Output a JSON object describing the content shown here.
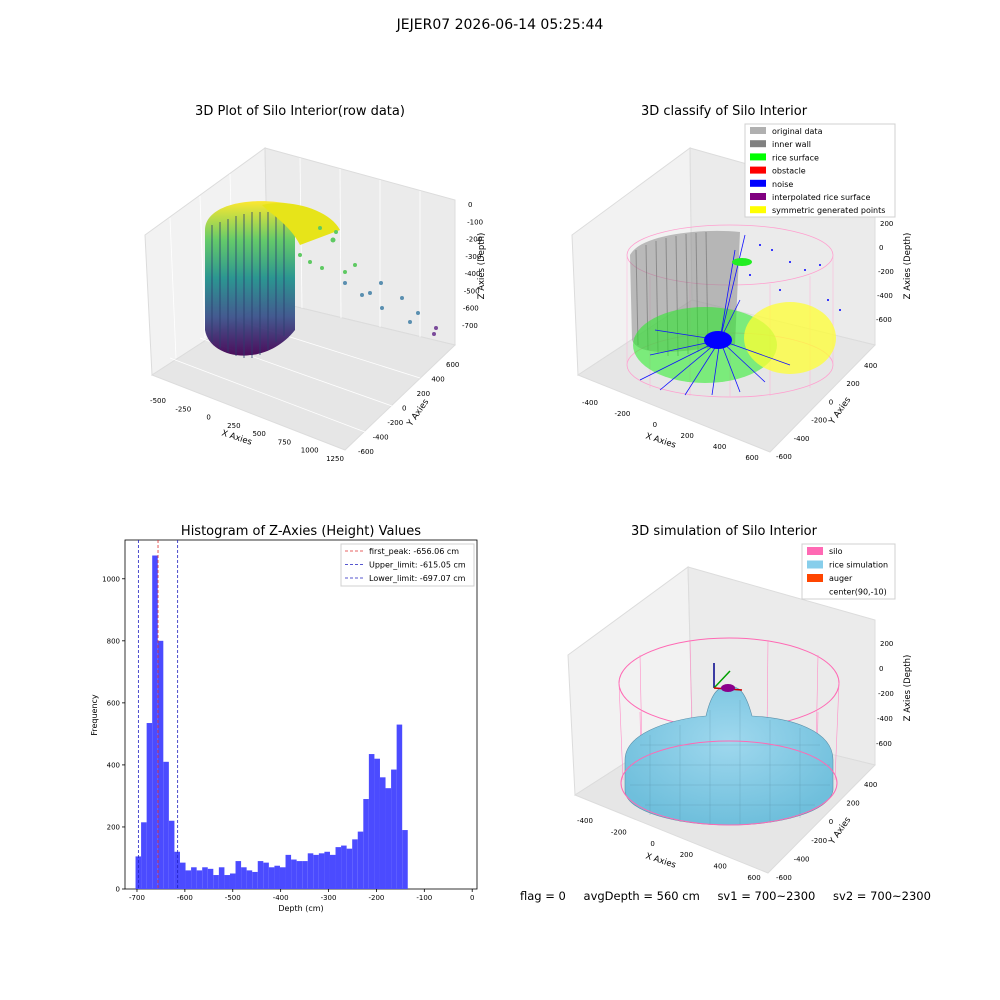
{
  "figure_title": "JEJER07 2026-06-14 05:25:44",
  "status": {
    "flag": "flag = 0",
    "avg_depth": "avgDepth = 560 cm",
    "sv1": "sv1 = 700~2300",
    "sv2": "sv2 = 700~2300"
  },
  "colors": {
    "histogram_bar": "#4b4bff",
    "first_peak_line": "#e03030",
    "limit_line": "#2020c0",
    "silo": "#ff69b4",
    "rice_simulation": "#87ceeb",
    "auger": "#ff4500",
    "original_data": "#b0b0b0",
    "inner_wall": "#808080",
    "rice_surface": "#00ff00",
    "obstacle": "#ff0000",
    "noise": "#0000ff",
    "interpolated_rice_surface": "#800080",
    "symmetric_generated_points": "#ffff00"
  },
  "chart_data": [
    {
      "type": "scatter",
      "title": "3D Plot of Silo Interior(row data)",
      "xlabel": "X Axies",
      "ylabel": "Y Axies",
      "zlabel": "Z Axies (Depth)",
      "x_ticks": [
        "-500",
        "-250",
        "0",
        "250",
        "500",
        "750",
        "1000",
        "1250"
      ],
      "y_ticks": [
        "-600",
        "-400",
        "-200",
        "0",
        "200",
        "400",
        "600"
      ],
      "z_ticks": [
        "0",
        "-100",
        "-200",
        "-300",
        "-400",
        "-500",
        "-600",
        "-700"
      ],
      "colormap": "viridis"
    },
    {
      "type": "scatter",
      "title": "3D classify of Silo Interior",
      "xlabel": "X Axies",
      "ylabel": "Y Axies",
      "zlabel": "Z Axies (Depth)",
      "x_ticks": [
        "-400",
        "-200",
        "0",
        "200",
        "400",
        "600"
      ],
      "y_ticks": [
        "-600",
        "-400",
        "-200",
        "0",
        "200",
        "400"
      ],
      "z_ticks": [
        "200",
        "0",
        "-200",
        "-400",
        "-600"
      ],
      "legend": [
        {
          "label": "original data",
          "color": "#b0b0b0"
        },
        {
          "label": "inner wall",
          "color": "#808080"
        },
        {
          "label": "rice surface",
          "color": "#00ff00"
        },
        {
          "label": "obstacle",
          "color": "#ff0000"
        },
        {
          "label": "noise",
          "color": "#0000ff"
        },
        {
          "label": "interpolated rice surface",
          "color": "#800080"
        },
        {
          "label": "symmetric generated points",
          "color": "#ffff00"
        }
      ],
      "legend_position": "top-right"
    },
    {
      "type": "bar",
      "title": "Histogram of Z-Axies (Height) Values",
      "xlabel": "Depth (cm)",
      "ylabel": "Frequency",
      "xlim": [
        -725,
        10
      ],
      "ylim": [
        0,
        1125
      ],
      "x_ticks": [
        -700,
        -600,
        -500,
        -400,
        -300,
        -200,
        -100,
        0
      ],
      "y_ticks": [
        0,
        200,
        400,
        600,
        800,
        1000
      ],
      "bin_width": 11.6,
      "bin_start": -703,
      "values": [
        105,
        215,
        535,
        1075,
        800,
        410,
        220,
        120,
        85,
        60,
        70,
        60,
        70,
        65,
        45,
        70,
        45,
        50,
        90,
        70,
        60,
        55,
        90,
        85,
        70,
        75,
        70,
        110,
        95,
        90,
        90,
        115,
        110,
        115,
        120,
        110,
        135,
        140,
        130,
        160,
        185,
        290,
        435,
        420,
        360,
        325,
        385,
        530,
        190
      ],
      "lines": [
        {
          "label": "first_peak: -656.06 cm",
          "x": -656.06,
          "color": "#e03030"
        },
        {
          "label": "Upper_limit: -615.05 cm",
          "x": -615.05,
          "color": "#2020c0"
        },
        {
          "label": "Lower_limit: -697.07 cm",
          "x": -697.07,
          "color": "#2020c0"
        }
      ],
      "legend_position": "top-right"
    },
    {
      "type": "surface",
      "title": "3D simulation of Silo Interior",
      "xlabel": "X Axies",
      "ylabel": "Y Axies",
      "zlabel": "Z Axies (Depth)",
      "x_ticks": [
        "-400",
        "-200",
        "0",
        "200",
        "400",
        "600"
      ],
      "y_ticks": [
        "-600",
        "-400",
        "-200",
        "0",
        "200",
        "400"
      ],
      "z_ticks": [
        "200",
        "0",
        "-200",
        "-400",
        "-600"
      ],
      "legend": [
        {
          "label": "silo",
          "color": "#ff69b4"
        },
        {
          "label": "rice simulation",
          "color": "#87ceeb"
        },
        {
          "label": "auger",
          "color": "#ff4500"
        },
        {
          "label": "center(90,-10)",
          "color": ""
        }
      ],
      "legend_position": "top-right"
    }
  ]
}
